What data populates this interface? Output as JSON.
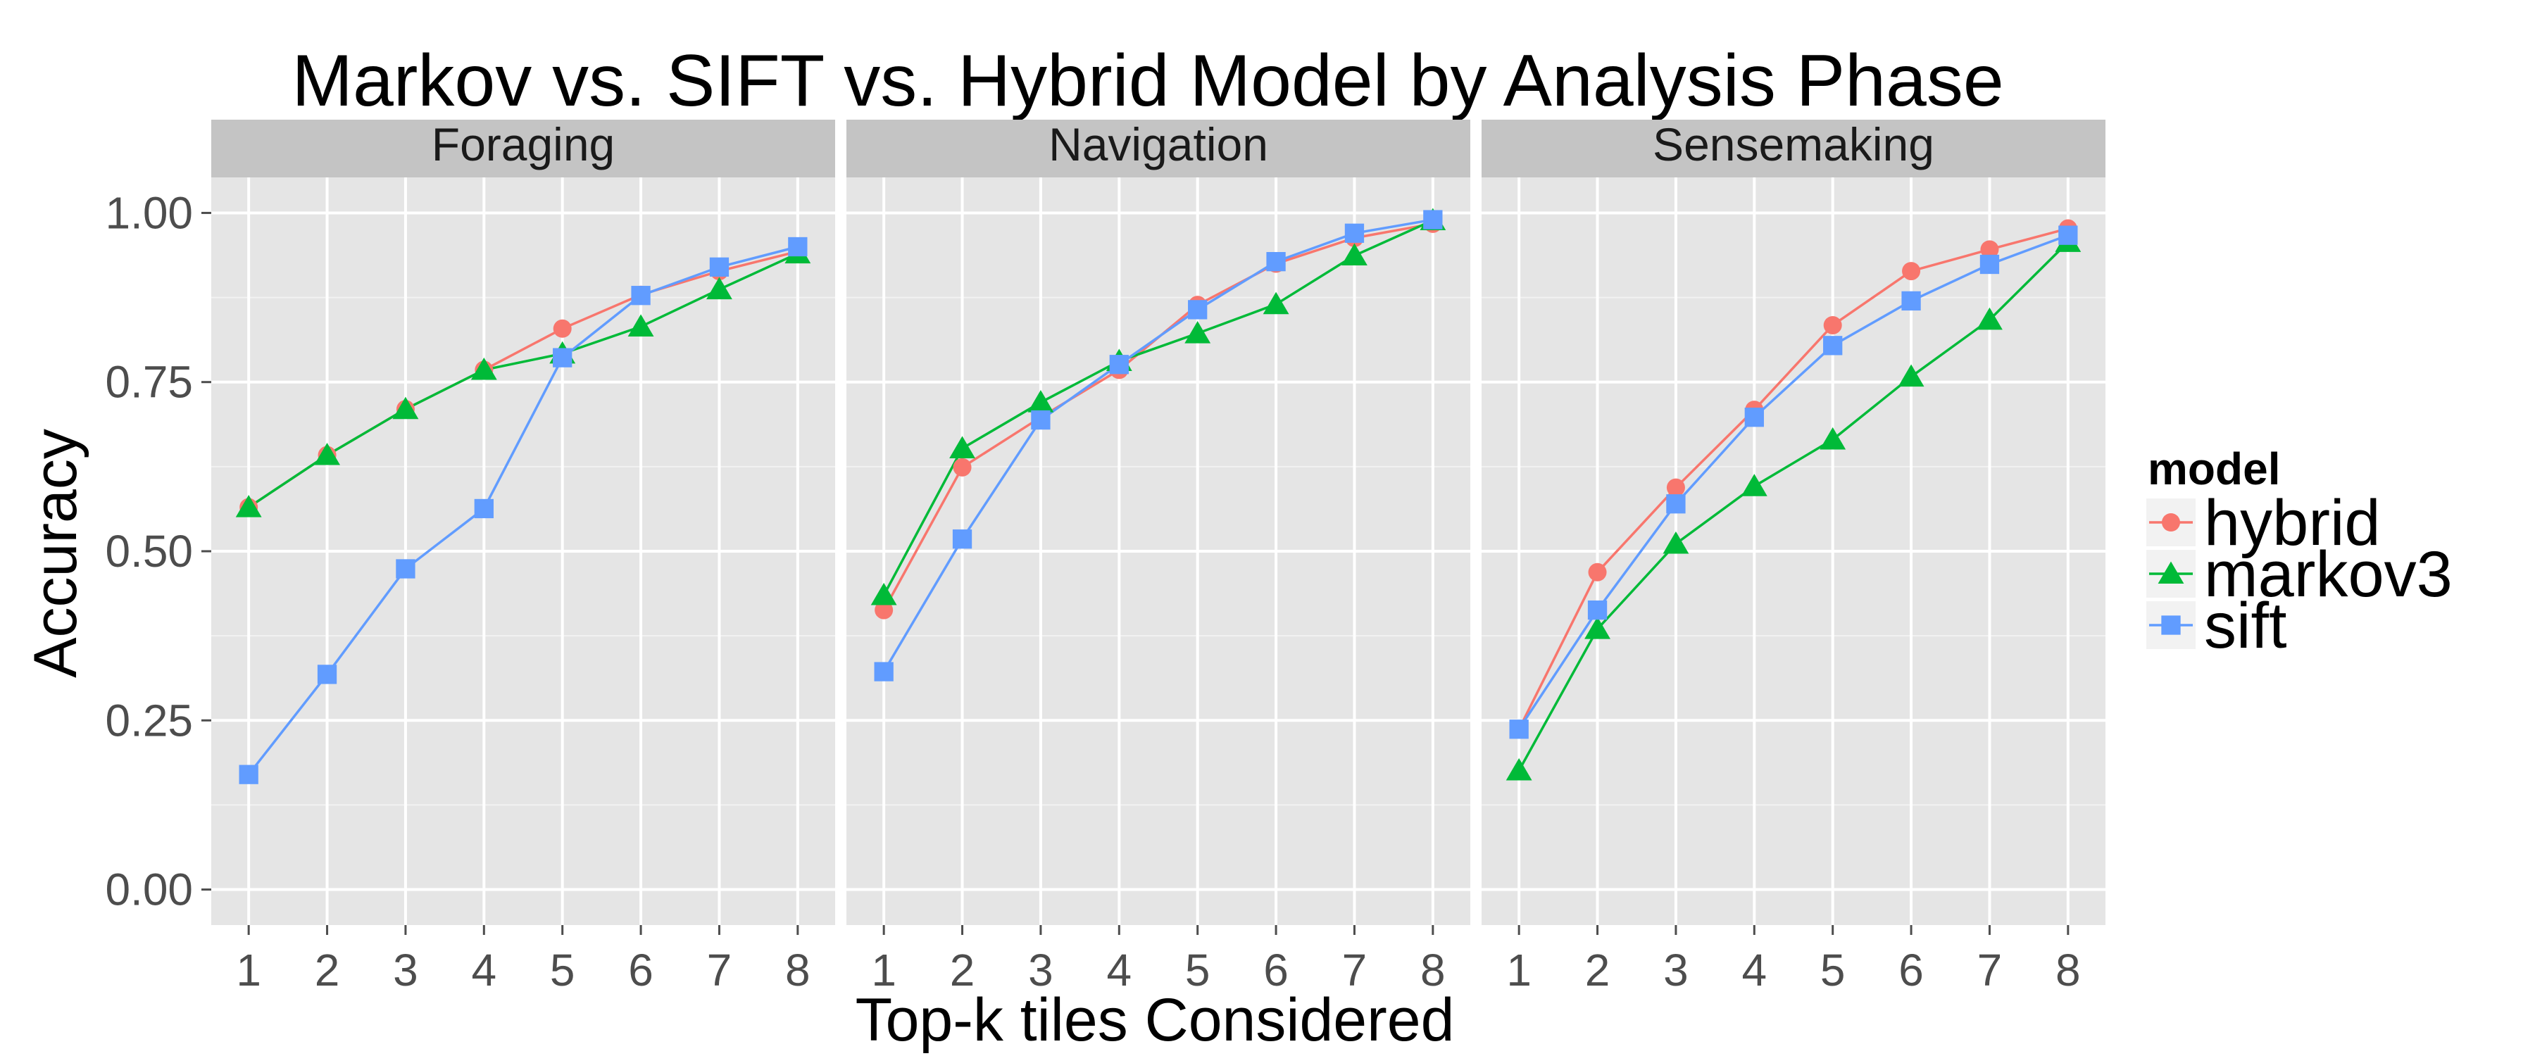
{
  "chart_data": {
    "type": "line",
    "title": "Markov vs. SIFT vs. Hybrid Model by Analysis Phase",
    "xlabel": "Top-k tiles Considered",
    "ylabel": "Accuracy",
    "x": [
      1,
      2,
      3,
      4,
      5,
      6,
      7,
      8
    ],
    "x_tick_labels": [
      "1",
      "2",
      "3",
      "4",
      "5",
      "6",
      "7",
      "8"
    ],
    "ylim": [
      0,
      1
    ],
    "y_ticks": [
      0,
      0.25,
      0.5,
      0.75,
      1.0
    ],
    "y_tick_labels": [
      "0.00",
      "0.25",
      "0.50",
      "0.75",
      "1.00"
    ],
    "grid": true,
    "legend": {
      "title": "model",
      "placement": "right",
      "entries": [
        {
          "name": "hybrid",
          "color": "#F8766D",
          "shape": "circle"
        },
        {
          "name": "markov3",
          "color": "#00BA38",
          "shape": "triangle"
        },
        {
          "name": "sift",
          "color": "#619CFF",
          "shape": "square"
        }
      ]
    },
    "panels": [
      {
        "label": "Foraging",
        "series": [
          {
            "name": "hybrid",
            "values": [
              0.565,
              0.642,
              0.71,
              0.768,
              0.829,
              0.879,
              0.914,
              0.943
            ]
          },
          {
            "name": "markov3",
            "values": [
              0.565,
              0.642,
              0.71,
              0.768,
              0.792,
              0.832,
              0.887,
              0.94
            ]
          },
          {
            "name": "sift",
            "values": [
              0.17,
              0.318,
              0.474,
              0.563,
              0.786,
              0.878,
              0.92,
              0.95
            ]
          }
        ]
      },
      {
        "label": "Navigation",
        "series": [
          {
            "name": "hybrid",
            "values": [
              0.413,
              0.624,
              0.698,
              0.768,
              0.864,
              0.925,
              0.963,
              0.984
            ]
          },
          {
            "name": "markov3",
            "values": [
              0.435,
              0.652,
              0.72,
              0.781,
              0.822,
              0.865,
              0.937,
              0.989
            ]
          },
          {
            "name": "sift",
            "values": [
              0.322,
              0.518,
              0.694,
              0.776,
              0.857,
              0.928,
              0.97,
              0.99
            ]
          }
        ]
      },
      {
        "label": "Sensemaking",
        "series": [
          {
            "name": "hybrid",
            "values": [
              0.237,
              0.469,
              0.594,
              0.709,
              0.834,
              0.914,
              0.946,
              0.977
            ]
          },
          {
            "name": "markov3",
            "values": [
              0.176,
              0.385,
              0.511,
              0.596,
              0.665,
              0.758,
              0.842,
              0.957
            ]
          },
          {
            "name": "sift",
            "values": [
              0.237,
              0.413,
              0.57,
              0.698,
              0.804,
              0.87,
              0.924,
              0.967
            ]
          }
        ]
      }
    ]
  }
}
